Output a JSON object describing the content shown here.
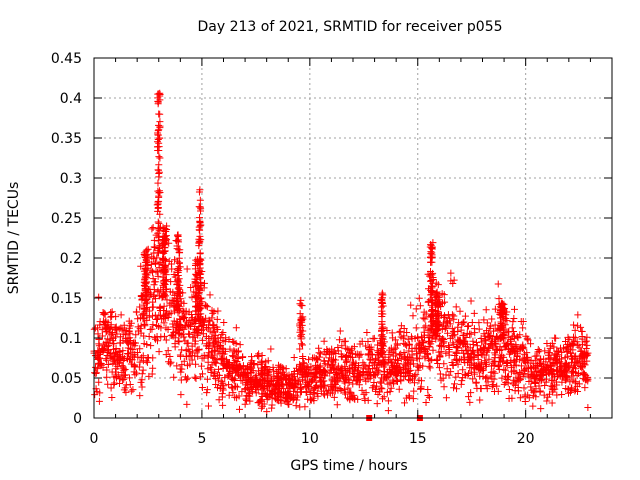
{
  "chart_data": {
    "type": "scatter",
    "title": "Day 213 of 2021, SRMTID for receiver p055",
    "xlabel": "GPS time / hours",
    "ylabel": "SRMTID / TECUs",
    "xlim": [
      0,
      24
    ],
    "ylim": [
      0,
      0.45
    ],
    "xticks": [
      0,
      5,
      10,
      15,
      20
    ],
    "xtick_labels": [
      "0",
      "5",
      "10",
      "15",
      "20"
    ],
    "yticks": [
      0,
      0.05,
      0.1,
      0.15,
      0.2,
      0.25,
      0.3,
      0.35,
      0.4,
      0.45
    ],
    "ytick_labels": [
      "0",
      "0.05",
      "0.1",
      "0.15",
      "0.2",
      "0.25",
      "0.3",
      "0.35",
      "0.4",
      "0.45"
    ],
    "grid": true,
    "marker": "+",
    "color": "#ff0000",
    "square_points": [
      {
        "x": 12.75,
        "y": 0.0
      },
      {
        "x": 15.1,
        "y": 0.0
      }
    ],
    "profile": [
      [
        0.0,
        0.085
      ],
      [
        0.5,
        0.09
      ],
      [
        1.0,
        0.085
      ],
      [
        1.5,
        0.075
      ],
      [
        2.0,
        0.09
      ],
      [
        2.3,
        0.13
      ],
      [
        2.6,
        0.14
      ],
      [
        3.0,
        0.16
      ],
      [
        3.5,
        0.14
      ],
      [
        4.0,
        0.11
      ],
      [
        4.5,
        0.1
      ],
      [
        5.0,
        0.11
      ],
      [
        5.5,
        0.09
      ],
      [
        6.0,
        0.07
      ],
      [
        6.5,
        0.06
      ],
      [
        7.0,
        0.05
      ],
      [
        8.0,
        0.045
      ],
      [
        9.0,
        0.04
      ],
      [
        10.0,
        0.05
      ],
      [
        11.0,
        0.055
      ],
      [
        12.0,
        0.06
      ],
      [
        13.0,
        0.065
      ],
      [
        14.0,
        0.065
      ],
      [
        15.0,
        0.08
      ],
      [
        15.5,
        0.11
      ],
      [
        16.0,
        0.1
      ],
      [
        16.5,
        0.095
      ],
      [
        17.0,
        0.085
      ],
      [
        17.5,
        0.08
      ],
      [
        18.0,
        0.075
      ],
      [
        18.5,
        0.085
      ],
      [
        19.0,
        0.095
      ],
      [
        19.5,
        0.075
      ],
      [
        20.0,
        0.065
      ],
      [
        20.5,
        0.055
      ],
      [
        21.0,
        0.06
      ],
      [
        21.5,
        0.065
      ],
      [
        22.0,
        0.07
      ],
      [
        22.5,
        0.075
      ],
      [
        22.8,
        0.07
      ]
    ],
    "spikes": [
      {
        "x": 2.4,
        "width": 0.2,
        "peak": 0.21
      },
      {
        "x": 3.0,
        "width": 0.12,
        "peak": 0.41
      },
      {
        "x": 3.25,
        "width": 0.15,
        "peak": 0.24
      },
      {
        "x": 3.9,
        "width": 0.15,
        "peak": 0.23
      },
      {
        "x": 4.9,
        "width": 0.1,
        "peak": 0.29
      },
      {
        "x": 4.8,
        "width": 0.25,
        "peak": 0.2
      },
      {
        "x": 9.6,
        "width": 0.15,
        "peak": 0.15
      },
      {
        "x": 13.35,
        "width": 0.1,
        "peak": 0.16
      },
      {
        "x": 15.65,
        "width": 0.15,
        "peak": 0.22
      },
      {
        "x": 15.9,
        "width": 0.2,
        "peak": 0.16
      },
      {
        "x": 18.9,
        "width": 0.2,
        "peak": 0.145
      }
    ],
    "point_count": 2600,
    "x_range": [
      0.0,
      22.9
    ]
  }
}
